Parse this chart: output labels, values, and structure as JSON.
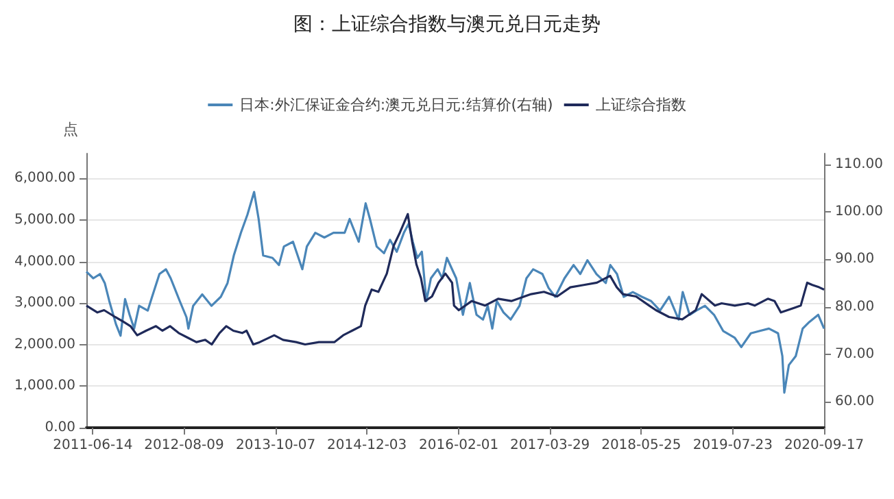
{
  "chart_data": {
    "type": "line",
    "title": "图：上证综合指数与澳元兑日元走势",
    "ylabel": "点",
    "xlim": [
      "2011-05-15",
      "2020-09-17"
    ],
    "xticks": [
      "2011-06-14",
      "2012-08-09",
      "2013-10-07",
      "2014-12-03",
      "2016-02-01",
      "2017-03-29",
      "2018-05-25",
      "2019-07-23",
      "2020-09-17"
    ],
    "ylim": [
      0,
      6600
    ],
    "yticks": [
      {
        "value": 0,
        "label": "0.00"
      },
      {
        "value": 1000,
        "label": "1,000.00"
      },
      {
        "value": 2000,
        "label": "2,000.00"
      },
      {
        "value": 3000,
        "label": "3,000.00"
      },
      {
        "value": 4000,
        "label": "4,000.00"
      },
      {
        "value": 5000,
        "label": "5,000.00"
      },
      {
        "value": 6000,
        "label": "6,000.00"
      }
    ],
    "y2lim": [
      54.5,
      112.3
    ],
    "y2ticks": [
      {
        "value": 60,
        "label": "60.00"
      },
      {
        "value": 70,
        "label": "70.00"
      },
      {
        "value": 80,
        "label": "80.00"
      },
      {
        "value": 90,
        "label": "90.00"
      },
      {
        "value": 100,
        "label": "100.00"
      },
      {
        "value": 110,
        "label": "110.00"
      }
    ],
    "grid": "y",
    "legend": "top",
    "marker": "none",
    "line_style": "solid",
    "series": [
      {
        "name": "日本:外汇保证金合约:澳元兑日元:结算价(右轴)",
        "color": "#4a86b8",
        "axis": "y2",
        "x": [
          "2011-05-15",
          "2011-06-16",
          "2011-07-17",
          "2011-08-08",
          "2011-08-29",
          "2011-09-29",
          "2011-10-20",
          "2011-11-10",
          "2011-12-01",
          "2011-12-22",
          "2012-01-14",
          "2012-02-23",
          "2012-03-14",
          "2012-04-17",
          "2012-05-17",
          "2012-06-08",
          "2012-07-20",
          "2012-08-20",
          "2012-08-29",
          "2012-09-20",
          "2012-11-01",
          "2012-12-14",
          "2013-01-26",
          "2013-02-26",
          "2013-03-27",
          "2013-04-29",
          "2013-05-29",
          "2013-06-29",
          "2013-07-20",
          "2013-08-10",
          "2013-09-22",
          "2013-10-22",
          "2013-11-14",
          "2013-12-26",
          "2014-02-07",
          "2014-02-28",
          "2014-04-08",
          "2014-05-20",
          "2014-07-01",
          "2014-08-22",
          "2014-09-14",
          "2014-10-26",
          "2014-11-27",
          "2014-12-17",
          "2015-01-17",
          "2015-02-20",
          "2015-03-20",
          "2015-04-20",
          "2015-05-23",
          "2015-06-14",
          "2015-07-03",
          "2015-07-24",
          "2015-08-14",
          "2015-09-04",
          "2015-09-25",
          "2015-10-26",
          "2015-11-17",
          "2015-12-08",
          "2016-01-20",
          "2016-02-20",
          "2016-03-23",
          "2016-04-23",
          "2016-05-23",
          "2016-06-14",
          "2016-07-05",
          "2016-07-26",
          "2016-08-26",
          "2016-09-28",
          "2016-11-08",
          "2016-12-10",
          "2017-01-10",
          "2017-02-22",
          "2017-03-22",
          "2017-04-22",
          "2017-06-04",
          "2017-07-16",
          "2017-08-16",
          "2017-09-18",
          "2017-10-30",
          "2017-12-12",
          "2018-01-02",
          "2018-02-02",
          "2018-03-05",
          "2018-04-16",
          "2018-05-28",
          "2018-07-10",
          "2018-08-20",
          "2018-10-01",
          "2018-11-14",
          "2018-12-03",
          "2019-01-04",
          "2019-02-04",
          "2019-03-16",
          "2019-04-27",
          "2019-06-08",
          "2019-07-31",
          "2019-08-31",
          "2019-10-14",
          "2019-11-25",
          "2020-01-06",
          "2020-02-17",
          "2020-03-08",
          "2020-03-17",
          "2020-04-07",
          "2020-05-09",
          "2020-06-10",
          "2020-07-11",
          "2020-08-21",
          "2020-09-17"
        ],
        "values": [
          87.4,
          86.0,
          86.9,
          85.0,
          81.2,
          76.3,
          73.9,
          81.6,
          78.3,
          75.4,
          80.2,
          79.2,
          82.1,
          86.9,
          87.9,
          86.0,
          81.2,
          77.8,
          75.4,
          80.2,
          82.6,
          80.2,
          82.1,
          85.0,
          90.8,
          95.6,
          99.4,
          104.2,
          98.5,
          90.8,
          90.3,
          88.8,
          92.7,
          93.7,
          87.9,
          92.7,
          95.6,
          94.6,
          95.6,
          95.6,
          98.5,
          93.7,
          101.8,
          98.5,
          92.7,
          91.3,
          94.1,
          91.6,
          95.6,
          97.5,
          93.7,
          90.3,
          91.6,
          81.2,
          86.0,
          87.9,
          86.0,
          90.3,
          86.0,
          78.3,
          85.0,
          78.3,
          77.3,
          80.2,
          75.4,
          81.2,
          78.8,
          77.3,
          80.2,
          86.0,
          87.9,
          86.9,
          84.0,
          82.1,
          86.0,
          88.8,
          86.9,
          89.8,
          86.9,
          85.0,
          88.8,
          86.9,
          82.1,
          83.1,
          82.1,
          81.2,
          79.2,
          82.1,
          77.3,
          83.1,
          78.3,
          79.2,
          80.2,
          78.3,
          74.9,
          73.5,
          71.5,
          74.4,
          74.9,
          75.4,
          74.4,
          69.6,
          61.9,
          67.7,
          69.6,
          75.4,
          76.8,
          78.3,
          75.4
        ]
      },
      {
        "name": "上证综合指数",
        "color": "#1f2a5a",
        "x": [
          "2011-05-15",
          "2011-07-05",
          "2011-08-05",
          "2011-09-25",
          "2011-11-01",
          "2011-12-05",
          "2012-01-05",
          "2012-02-15",
          "2012-04-01",
          "2012-05-01",
          "2012-06-05",
          "2012-07-15",
          "2012-08-25",
          "2012-10-05",
          "2012-11-15",
          "2012-12-15",
          "2013-01-20",
          "2013-02-20",
          "2013-03-25",
          "2013-05-05",
          "2013-05-25",
          "2013-06-25",
          "2013-07-25",
          "2013-09-30",
          "2013-11-10",
          "2014-01-10",
          "2014-02-20",
          "2014-04-25",
          "2014-07-05",
          "2014-08-15",
          "2014-09-25",
          "2014-11-05",
          "2014-11-25",
          "2014-12-25",
          "2015-01-25",
          "2015-03-05",
          "2015-04-05",
          "2015-05-05",
          "2015-06-10",
          "2015-06-30",
          "2015-07-20",
          "2015-08-10",
          "2015-08-30",
          "2015-09-30",
          "2015-10-30",
          "2015-12-01",
          "2016-01-01",
          "2016-01-10",
          "2016-02-01",
          "2016-04-01",
          "2016-06-01",
          "2016-08-01",
          "2016-10-01",
          "2017-01-01",
          "2017-03-01",
          "2017-05-01",
          "2017-07-01",
          "2017-09-01",
          "2017-11-01",
          "2018-01-01",
          "2018-02-01",
          "2018-03-01",
          "2018-05-01",
          "2018-07-01",
          "2018-08-01",
          "2018-10-01",
          "2018-12-01",
          "2019-02-01",
          "2019-03-01",
          "2019-05-01",
          "2019-06-01",
          "2019-08-01",
          "2019-10-01",
          "2019-11-01",
          "2020-01-01",
          "2020-02-01",
          "2020-03-01",
          "2020-05-01",
          "2020-06-01",
          "2020-07-01",
          "2020-07-25",
          "2020-08-25",
          "2020-09-17"
        ],
        "values": [
          2940,
          2775,
          2830,
          2665,
          2555,
          2445,
          2225,
          2335,
          2445,
          2335,
          2445,
          2280,
          2170,
          2060,
          2115,
          2005,
          2280,
          2445,
          2335,
          2280,
          2335,
          2005,
          2060,
          2225,
          2115,
          2060,
          2005,
          2060,
          2060,
          2225,
          2335,
          2445,
          2940,
          3326,
          3270,
          3711,
          4372,
          4703,
          5143,
          4482,
          3932,
          3600,
          3050,
          3160,
          3490,
          3711,
          3490,
          2940,
          2830,
          3050,
          2940,
          3105,
          3050,
          3216,
          3271,
          3160,
          3381,
          3436,
          3491,
          3656,
          3381,
          3216,
          3160,
          2940,
          2830,
          2665,
          2610,
          2830,
          3216,
          2940,
          2995,
          2940,
          2995,
          2940,
          3105,
          3050,
          2775,
          2885,
          2940,
          3491,
          3436,
          3381,
          3326
        ]
      }
    ]
  }
}
